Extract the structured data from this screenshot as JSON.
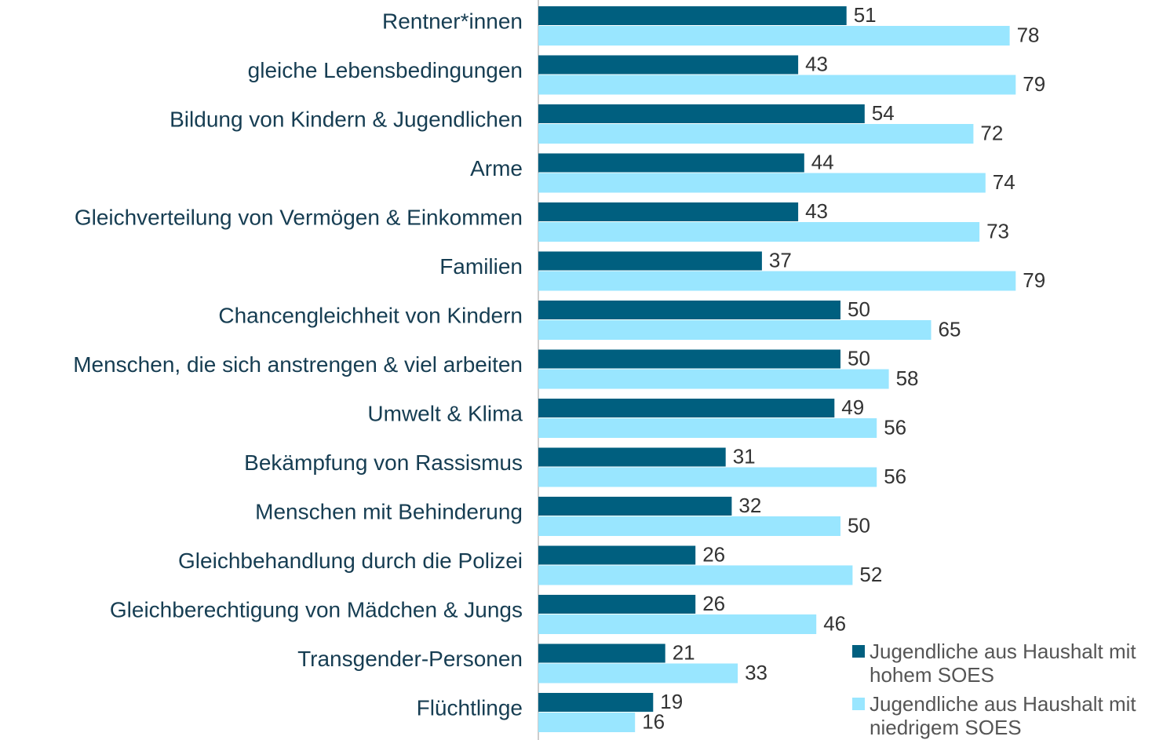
{
  "chart_data": {
    "type": "bar",
    "orientation": "horizontal",
    "categories": [
      "Rentner*innen",
      "gleiche Lebensbedingungen",
      "Bildung von Kindern & Jugendlichen",
      "Arme",
      "Gleichverteilung von Vermögen & Einkommen",
      "Familien",
      "Chancengleichheit von Kindern",
      "Menschen, die sich anstrengen & viel arbeiten",
      "Umwelt & Klima",
      "Bekämpfung von Rassismus",
      "Menschen mit Behinderung",
      "Gleichbehandlung durch die Polizei",
      "Gleichberechtigung von Mädchen & Jungs",
      "Transgender-Personen",
      "Flüchtlinge"
    ],
    "series": [
      {
        "name": "Jugendliche aus Haushalt mit hohem SOES",
        "color": "#005f7f",
        "values": [
          51,
          43,
          54,
          44,
          43,
          37,
          50,
          50,
          49,
          31,
          32,
          26,
          26,
          21,
          19
        ]
      },
      {
        "name": "Jugendliche aus Haushalt mit niedrigem SOES",
        "color": "#99e6ff",
        "values": [
          78,
          79,
          72,
          74,
          73,
          79,
          65,
          58,
          56,
          56,
          50,
          52,
          46,
          33,
          16
        ]
      }
    ],
    "xlim": [
      0,
      100
    ],
    "legend": "bottom-right"
  }
}
